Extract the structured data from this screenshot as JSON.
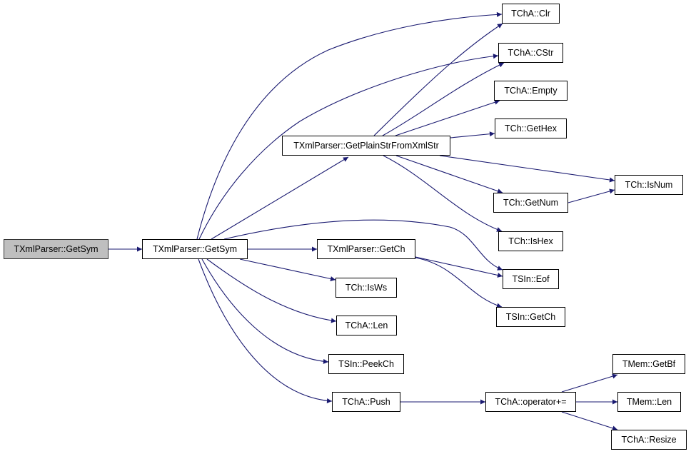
{
  "colors": {
    "edge": "#191970",
    "root_fill": "#bfbfbf",
    "node_fill": "#ffffff"
  },
  "nodes": {
    "root": "TXmlParser::GetSym",
    "getsym": "TXmlParser::GetSym",
    "getplain": "TXmlParser::GetPlainStrFromXmlStr",
    "clr": "TChA::Clr",
    "cstr": "TChA::CStr",
    "empty": "TChA::Empty",
    "gethex": "TCh::GetHex",
    "isnum": "TCh::IsNum",
    "getnum": "TCh::GetNum",
    "ishex": "TCh::IsHex",
    "getch": "TXmlParser::GetCh",
    "eof": "TSIn::Eof",
    "isws": "TCh::IsWs",
    "sin_getch": "TSIn::GetCh",
    "len": "TChA::Len",
    "peekch": "TSIn::PeekCh",
    "getbf": "TMem::GetBf",
    "push": "TChA::Push",
    "opplus": "TChA::operator+=",
    "memlen": "TMem::Len",
    "resize": "TChA::Resize"
  },
  "edges": [
    [
      "root",
      "getsym"
    ],
    [
      "getsym",
      "clr"
    ],
    [
      "getsym",
      "cstr"
    ],
    [
      "getsym",
      "getplain"
    ],
    [
      "getsym",
      "eof"
    ],
    [
      "getsym",
      "getch"
    ],
    [
      "getsym",
      "isws"
    ],
    [
      "getsym",
      "len"
    ],
    [
      "getsym",
      "peekch"
    ],
    [
      "getsym",
      "push"
    ],
    [
      "getplain",
      "clr"
    ],
    [
      "getplain",
      "cstr"
    ],
    [
      "getplain",
      "empty"
    ],
    [
      "getplain",
      "gethex"
    ],
    [
      "getplain",
      "isnum"
    ],
    [
      "getplain",
      "getnum"
    ],
    [
      "getplain",
      "ishex"
    ],
    [
      "getch",
      "eof"
    ],
    [
      "getch",
      "sin_getch"
    ],
    [
      "getnum",
      "isnum"
    ],
    [
      "push",
      "opplus"
    ],
    [
      "opplus",
      "getbf"
    ],
    [
      "opplus",
      "memlen"
    ],
    [
      "opplus",
      "resize"
    ]
  ]
}
